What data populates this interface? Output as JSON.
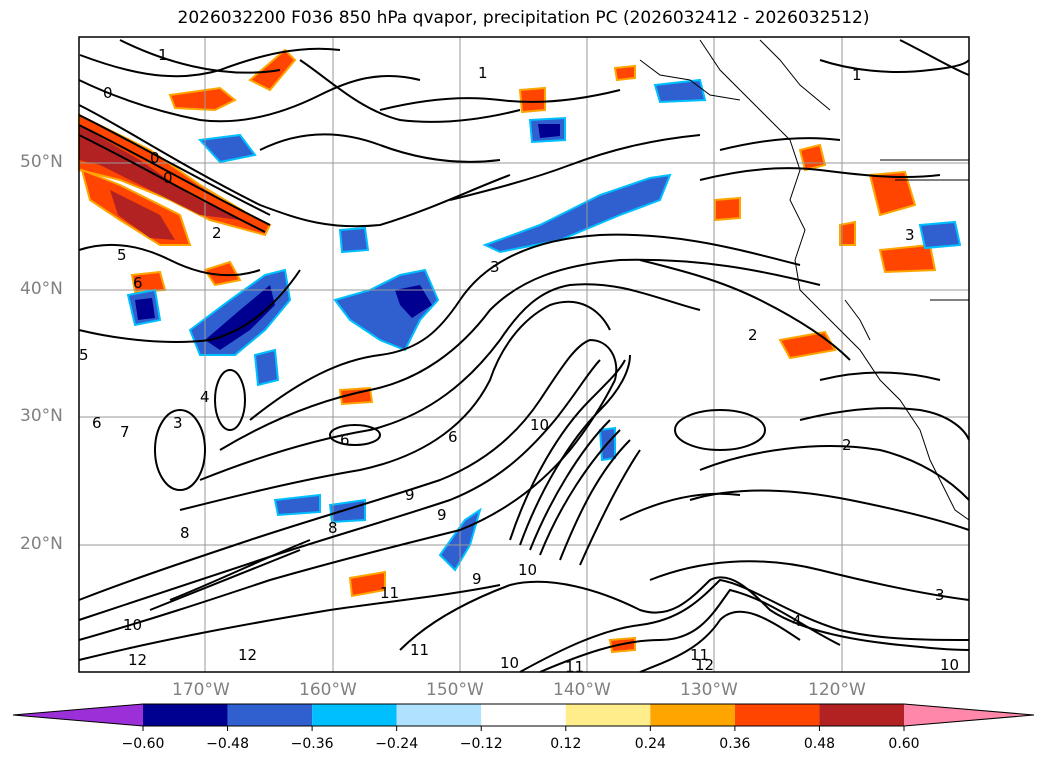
{
  "title": "2026032200 F036 850 hPa qvapor, precipitation PC (2026032412 - 2026032512)",
  "latitude_labels": [
    "50°N",
    "40°N",
    "30°N",
    "20°N"
  ],
  "longitude_labels": [
    "170°W",
    "160°W",
    "150°W",
    "140°W",
    "130°W",
    "120°W"
  ],
  "colorbar": {
    "ticks": [
      "−0.60",
      "−0.48",
      "−0.36",
      "−0.24",
      "−0.12",
      "0.12",
      "0.24",
      "0.36",
      "0.48",
      "0.60"
    ],
    "colors": [
      "#9b30d9",
      "#000090",
      "#3060d0",
      "#00bfff",
      "#b0e2ff",
      "#ffffff",
      "#ffec8b",
      "#ffa500",
      "#ff4500",
      "#b22222",
      "#ff88aa"
    ]
  },
  "contour_labels": [
    "1",
    "0",
    "0",
    "0",
    "5",
    "6",
    "2",
    "3",
    "4",
    "5",
    "6",
    "7",
    "8",
    "8",
    "9",
    "9",
    "9",
    "10",
    "10",
    "10",
    "10",
    "11",
    "11",
    "11",
    "11",
    "12",
    "12",
    "12",
    "1",
    "1",
    "2",
    "2",
    "3",
    "3",
    "3",
    "4",
    "10",
    "6",
    "6"
  ],
  "colors": {
    "contour": "#000000",
    "grid": "#999999",
    "coast": "#000000"
  }
}
